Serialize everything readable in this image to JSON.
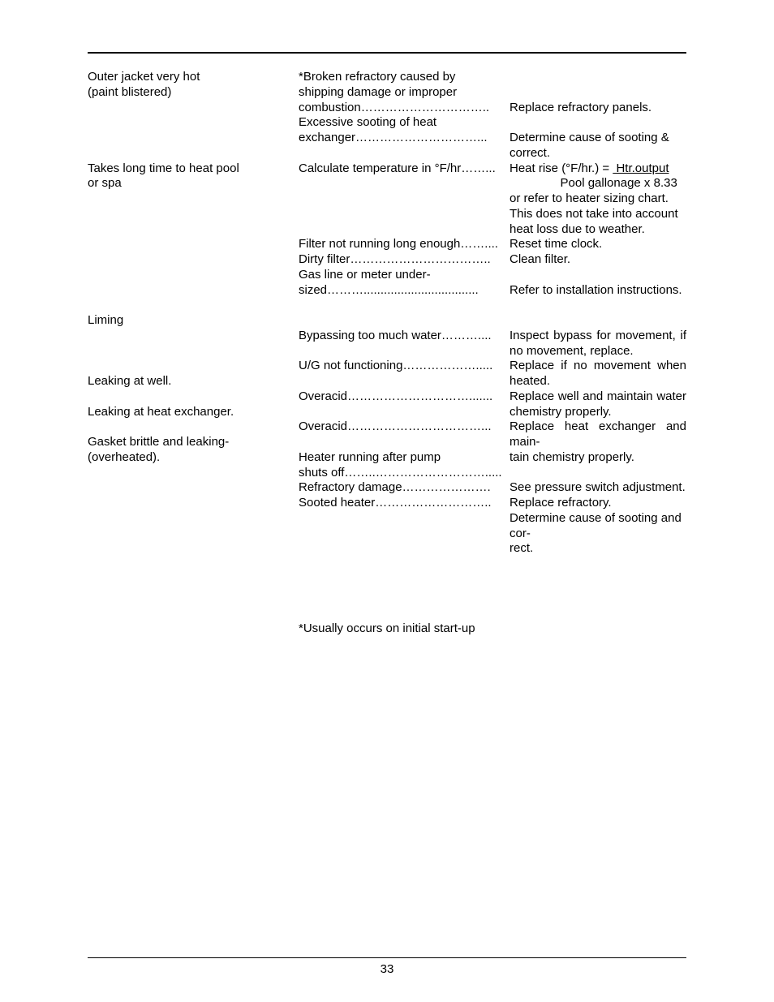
{
  "rows": [
    {
      "c1": "Outer jacket very hot\n(paint blistered)",
      "c2": "*Broken refractory caused by\nshipping damage or improper\ncombustion…………………………..\nExcessive sooting of heat\nexchanger…………………………...",
      "c3": "\n\nReplace refractory panels.\n\nDetermine cause of sooting &\ncorrect."
    },
    {
      "c1": "Takes long time to heat pool\nor spa",
      "c2": "Calculate temperature in °F/hr……...\n\n\n\n\nFilter not running long enough……....\nDirty filter……………………………..\nGas line or meter under-\nsized………..................................",
      "c3_html": "Heat rise (°F/hr.) = <span class=\"underline\">&nbsp;Htr.output</span><br>&nbsp;&nbsp;&nbsp;&nbsp;&nbsp;&nbsp;&nbsp;&nbsp;&nbsp;&nbsp;&nbsp;&nbsp;&nbsp;&nbsp;&nbsp;Pool gallonage x 8.33<br>or refer to heater sizing chart.<br>This does not take into account heat loss due to weather.<br>Reset time clock.<br>Clean filter.<br><br>Refer to installation instructions."
    },
    {
      "c1": "\nLiming\n\n\n\nLeaking at well.\n\nLeaking at heat exchanger.\n\nGasket brittle and leaking-\n(overheated).",
      "c2": "\n\nBypassing too much water………....\n\nU/G not functioning……………….....\n\nOveracid………………………….......\n\nOveracid……………………………...\n\nHeater running after pump\nshuts off……..……………………….....\nRefractory damage………………….\nSooted heater………………………..",
      "c3_html": "<br><br><span class=\"justify\" style=\"display:block\">Inspect bypass for movement, if no movement, replace.</span><span class=\"justify\" style=\"display:block\">Replace if no movement when heated.</span><span class=\"justify\" style=\"display:block\">Replace well and maintain water chemistry properly.</span><span class=\"justify\" style=\"display:block\">Replace heat exchanger and main-</span>tain chemistry properly.<br><br>See pressure switch adjustment.<br>Replace refractory.<br>Determine cause of sooting and cor-<br>rect."
    }
  ],
  "footnote": "*Usually occurs on initial start-up",
  "page_number": "33"
}
